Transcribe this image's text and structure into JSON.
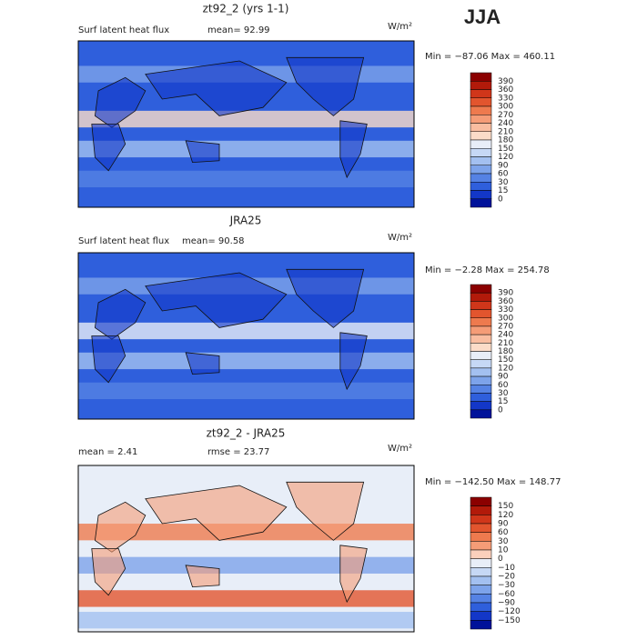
{
  "season": "JJA",
  "panels": [
    {
      "title": "zt92_2 (yrs 1-1)",
      "left_label": "Surf latent heat flux",
      "stat_label": "mean=  92.99",
      "units": "W/m²",
      "minmax": "Min = −87.06 Max = 460.11",
      "colorbar": {
        "labels": [
          "390",
          "360",
          "330",
          "300",
          "270",
          "240",
          "210",
          "180",
          "150",
          "120",
          "90",
          "60",
          "30",
          "15",
          "0"
        ],
        "colors": [
          "#8b0000",
          "#b21a0a",
          "#d0361a",
          "#e2552e",
          "#ee7a4e",
          "#f59c77",
          "#f9bda0",
          "#fbdcc8",
          "#e8eef8",
          "#c6d8f5",
          "#a3c0f0",
          "#7da3ea",
          "#5582e4",
          "#2f5fdc",
          "#1337c8",
          "#00129a"
        ]
      }
    },
    {
      "title": "JRA25",
      "left_label": "Surf latent heat flux",
      "stat_label": "mean=  90.58",
      "units": "W/m²",
      "minmax": "Min =  −2.28 Max = 254.78",
      "colorbar": {
        "labels": [
          "390",
          "360",
          "330",
          "300",
          "270",
          "240",
          "210",
          "180",
          "150",
          "120",
          "90",
          "60",
          "30",
          "15",
          "0"
        ],
        "colors": [
          "#8b0000",
          "#b21a0a",
          "#d0361a",
          "#e2552e",
          "#ee7a4e",
          "#f59c77",
          "#f9bda0",
          "#fbdcc8",
          "#e8eef8",
          "#c6d8f5",
          "#a3c0f0",
          "#7da3ea",
          "#5582e4",
          "#2f5fdc",
          "#1337c8",
          "#00129a"
        ]
      }
    },
    {
      "title": "zt92_2 - JRA25",
      "left_label": "mean =   2.41",
      "stat_label": "rmse =   23.77",
      "units": "W/m²",
      "minmax": "Min = −142.50 Max = 148.77",
      "colorbar": {
        "labels": [
          "150",
          "120",
          "90",
          "60",
          "30",
          "10",
          "0",
          "−10",
          "−20",
          "−30",
          "−60",
          "−90",
          "−120",
          "−150"
        ],
        "colors": [
          "#8b0000",
          "#b21a0a",
          "#d0361a",
          "#e2552e",
          "#ee7a4e",
          "#f59c77",
          "#fbd0bc",
          "#e8eef8",
          "#c6d8f5",
          "#a3c0f0",
          "#7da3ea",
          "#5582e4",
          "#2f5fdc",
          "#1337c8",
          "#00129a"
        ]
      }
    }
  ]
}
